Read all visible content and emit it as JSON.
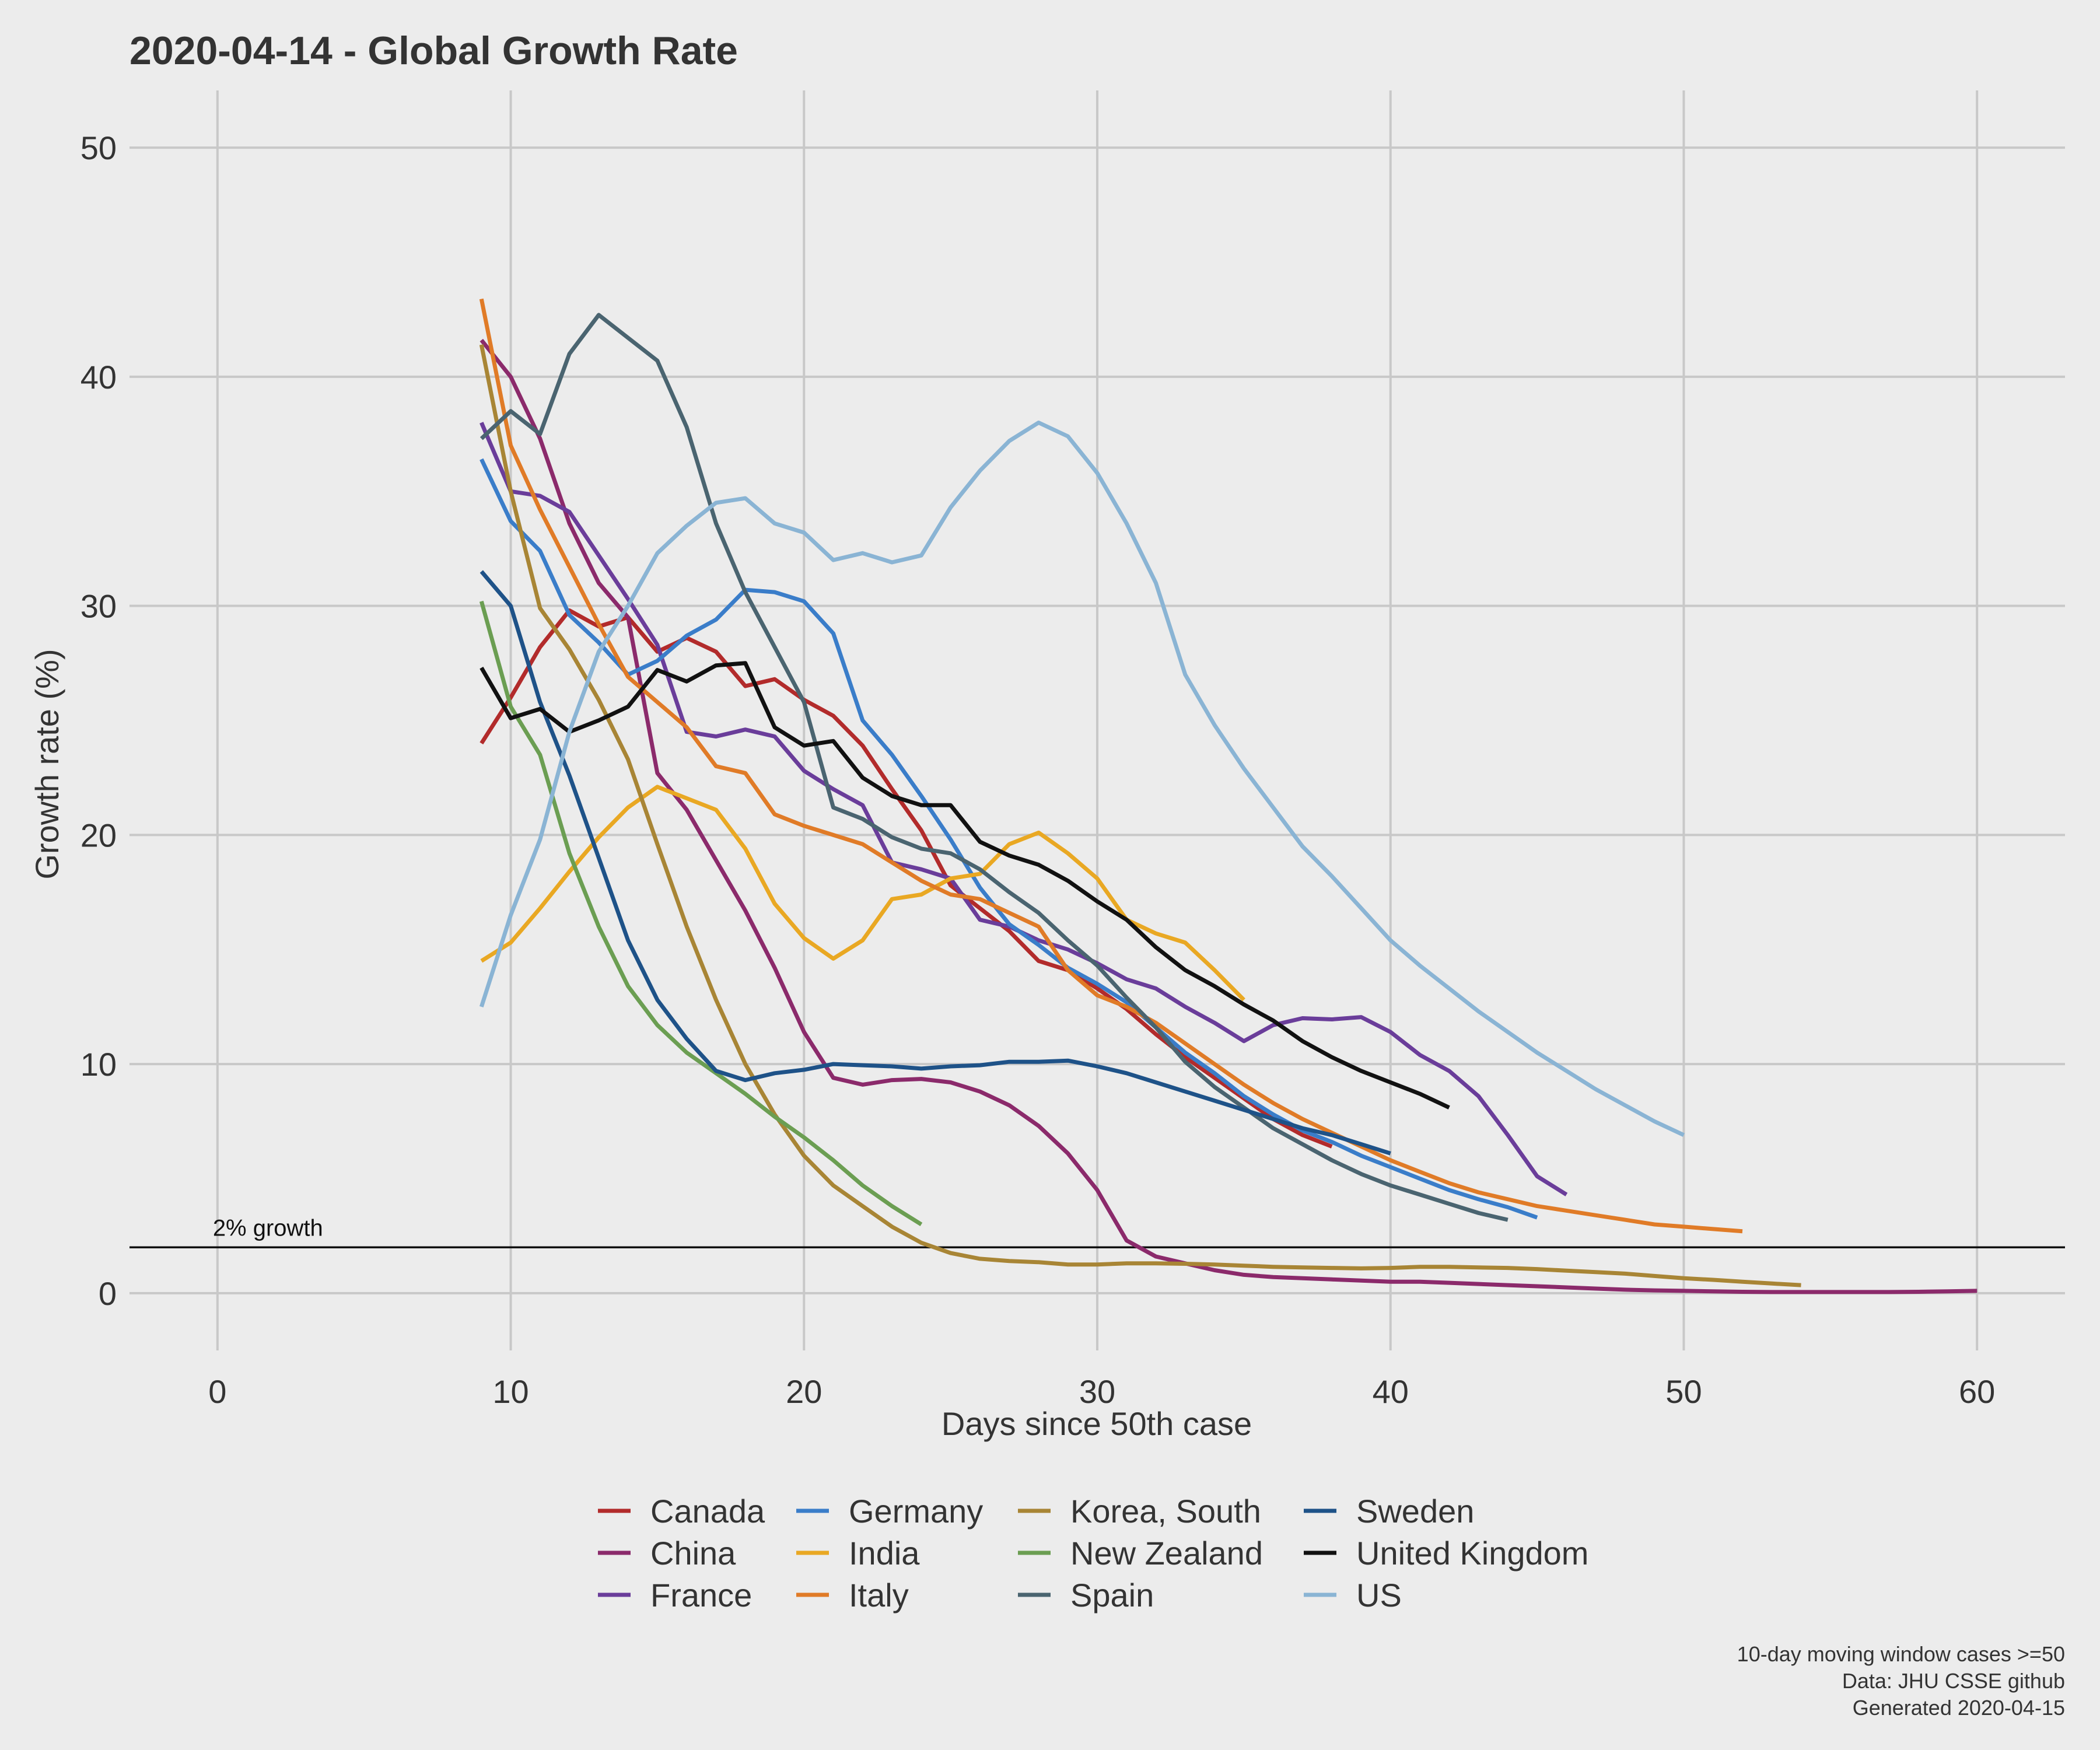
{
  "chart_data": {
    "type": "line",
    "title": "2020-04-14  - Global Growth Rate",
    "xlabel": "Days since 50th case",
    "ylabel": "Growth rate (%)",
    "xlim": [
      -3,
      63
    ],
    "ylim": [
      -2.5,
      52.5
    ],
    "x_ticks": [
      0,
      10,
      20,
      30,
      40,
      50,
      60
    ],
    "y_ticks": [
      0,
      10,
      20,
      30,
      40,
      50
    ],
    "grid": true,
    "legend_position": "bottom",
    "reference_line": {
      "y": 2,
      "label": "2% growth"
    },
    "caption": [
      "10-day moving window cases >=50",
      "Data: JHU CSSE github",
      "Generated 2020-04-15"
    ],
    "series": [
      {
        "name": "Canada",
        "color": "#b22b2b",
        "x": [
          9,
          10,
          11,
          12,
          13,
          14,
          15,
          16,
          17,
          18,
          19,
          20,
          21,
          22,
          23,
          24,
          25,
          26,
          27,
          28,
          29,
          30,
          31,
          32,
          33,
          34,
          35,
          36,
          37,
          38
        ],
        "y": [
          24.0,
          26.0,
          28.2,
          29.8,
          29.1,
          29.5,
          28.0,
          28.6,
          28.0,
          26.5,
          26.8,
          25.9,
          25.2,
          23.9,
          22.0,
          20.2,
          17.8,
          16.8,
          15.8,
          14.5,
          14.1,
          13.3,
          12.4,
          11.3,
          10.3,
          9.4,
          8.5,
          7.6,
          6.9,
          6.4
        ]
      },
      {
        "name": "China",
        "color": "#8b2a6b",
        "x": [
          9,
          10,
          11,
          12,
          13,
          14,
          15,
          16,
          17,
          18,
          19,
          20,
          21,
          22,
          23,
          24,
          25,
          26,
          27,
          28,
          29,
          30,
          31,
          32,
          33,
          34,
          35,
          36,
          37,
          38,
          39,
          40,
          41,
          42,
          43,
          44,
          45,
          46,
          47,
          48,
          49,
          50,
          51,
          52,
          53,
          54,
          55,
          56,
          57,
          58,
          59,
          60
        ],
        "y": [
          41.6,
          40.0,
          37.3,
          33.6,
          31.0,
          29.5,
          22.7,
          21.1,
          18.9,
          16.7,
          14.2,
          11.4,
          9.4,
          9.1,
          9.3,
          9.35,
          9.2,
          8.8,
          8.2,
          7.3,
          6.1,
          4.5,
          2.3,
          1.6,
          1.3,
          1.0,
          0.8,
          0.7,
          0.65,
          0.6,
          0.55,
          0.5,
          0.5,
          0.45,
          0.4,
          0.35,
          0.3,
          0.25,
          0.2,
          0.15,
          0.12,
          0.1,
          0.08,
          0.06,
          0.05,
          0.05,
          0.05,
          0.05,
          0.05,
          0.06,
          0.08,
          0.1
        ]
      },
      {
        "name": "France",
        "color": "#6a3d9a",
        "x": [
          9,
          10,
          11,
          12,
          13,
          14,
          15,
          16,
          17,
          18,
          19,
          20,
          21,
          22,
          23,
          24,
          25,
          26,
          27,
          28,
          29,
          30,
          31,
          32,
          33,
          34,
          35,
          36,
          37,
          38,
          39,
          40,
          41,
          42,
          43,
          44,
          45,
          46
        ],
        "y": [
          38.0,
          35.0,
          34.8,
          34.1,
          32.2,
          30.3,
          28.3,
          24.5,
          24.3,
          24.6,
          24.3,
          22.8,
          22.0,
          21.3,
          18.8,
          18.5,
          18.1,
          16.3,
          16.0,
          15.4,
          15.0,
          14.4,
          13.7,
          13.3,
          12.5,
          11.8,
          11.0,
          11.7,
          12.0,
          11.95,
          12.05,
          11.4,
          10.4,
          9.7,
          8.6,
          6.9,
          5.1,
          4.3
        ]
      },
      {
        "name": "Germany",
        "color": "#3a7dc9",
        "x": [
          9,
          10,
          11,
          12,
          13,
          14,
          15,
          16,
          17,
          18,
          19,
          20,
          21,
          22,
          23,
          24,
          25,
          26,
          27,
          28,
          29,
          30,
          31,
          32,
          33,
          34,
          35,
          36,
          37,
          38,
          39,
          40,
          41,
          42,
          43,
          44,
          45
        ],
        "y": [
          36.4,
          33.7,
          32.4,
          29.6,
          28.4,
          27.0,
          27.6,
          28.7,
          29.4,
          30.7,
          30.6,
          30.2,
          28.8,
          25.0,
          23.5,
          21.7,
          19.8,
          17.7,
          16.1,
          15.2,
          14.2,
          13.5,
          12.7,
          11.6,
          10.5,
          9.6,
          8.6,
          7.8,
          7.1,
          6.6,
          6.0,
          5.5,
          5.0,
          4.5,
          4.1,
          3.75,
          3.3
        ]
      },
      {
        "name": "India",
        "color": "#e9a823",
        "x": [
          9,
          10,
          11,
          12,
          13,
          14,
          15,
          16,
          17,
          18,
          19,
          20,
          21,
          22,
          23,
          24,
          25,
          26,
          27,
          28,
          29,
          30,
          31,
          32,
          33,
          34,
          35
        ],
        "y": [
          14.5,
          15.3,
          16.8,
          18.4,
          19.9,
          21.2,
          22.1,
          21.6,
          21.1,
          19.4,
          17.0,
          15.5,
          14.6,
          15.4,
          17.2,
          17.4,
          18.1,
          18.3,
          19.6,
          20.1,
          19.2,
          18.1,
          16.3,
          15.7,
          15.3,
          14.1,
          12.8
        ]
      },
      {
        "name": "Italy",
        "color": "#e07b27",
        "x": [
          9,
          10,
          11,
          12,
          13,
          14,
          15,
          16,
          17,
          18,
          19,
          20,
          21,
          22,
          23,
          24,
          25,
          26,
          27,
          28,
          29,
          30,
          31,
          32,
          33,
          34,
          35,
          36,
          37,
          38,
          39,
          40,
          41,
          42,
          43,
          44,
          45,
          46,
          47,
          48,
          49,
          50,
          51,
          52
        ],
        "y": [
          43.4,
          37.0,
          34.2,
          31.7,
          29.2,
          26.9,
          25.8,
          24.7,
          23.0,
          22.7,
          20.9,
          20.4,
          20.0,
          19.6,
          18.8,
          18.0,
          17.4,
          17.2,
          16.6,
          16.0,
          14.1,
          13.0,
          12.5,
          11.8,
          10.9,
          10.0,
          9.1,
          8.3,
          7.6,
          7.0,
          6.4,
          5.8,
          5.3,
          4.8,
          4.4,
          4.1,
          3.8,
          3.6,
          3.4,
          3.2,
          3.0,
          2.9,
          2.8,
          2.7
        ]
      },
      {
        "name": "Korea, South",
        "color": "#a88535",
        "x": [
          9,
          10,
          11,
          12,
          13,
          14,
          15,
          16,
          17,
          18,
          19,
          20,
          21,
          22,
          23,
          24,
          25,
          26,
          27,
          28,
          29,
          30,
          31,
          32,
          33,
          34,
          35,
          36,
          37,
          38,
          39,
          40,
          41,
          42,
          43,
          44,
          45,
          46,
          47,
          48,
          49,
          50,
          51,
          52,
          53,
          54
        ],
        "y": [
          41.4,
          35.0,
          29.9,
          28.1,
          25.9,
          23.3,
          19.6,
          16.0,
          12.8,
          10.0,
          7.8,
          6.0,
          4.7,
          3.8,
          2.9,
          2.2,
          1.75,
          1.5,
          1.4,
          1.35,
          1.25,
          1.25,
          1.3,
          1.3,
          1.28,
          1.25,
          1.2,
          1.15,
          1.12,
          1.1,
          1.08,
          1.1,
          1.15,
          1.15,
          1.12,
          1.1,
          1.05,
          0.98,
          0.92,
          0.85,
          0.75,
          0.65,
          0.58,
          0.5,
          0.42,
          0.35
        ]
      },
      {
        "name": "New Zealand",
        "color": "#6b9e52",
        "x": [
          9,
          10,
          11,
          12,
          13,
          14,
          15,
          16,
          17,
          18,
          19,
          20,
          21,
          22,
          23,
          24
        ],
        "y": [
          30.2,
          25.6,
          23.5,
          19.2,
          16.0,
          13.4,
          11.7,
          10.5,
          9.6,
          8.7,
          7.7,
          6.8,
          5.8,
          4.7,
          3.8,
          3.0
        ]
      },
      {
        "name": "Spain",
        "color": "#4a6470",
        "x": [
          9,
          10,
          11,
          12,
          13,
          14,
          15,
          16,
          17,
          18,
          19,
          20,
          21,
          22,
          23,
          24,
          25,
          26,
          27,
          28,
          29,
          30,
          31,
          32,
          33,
          34,
          35,
          36,
          37,
          38,
          39,
          40,
          41,
          42,
          43,
          44
        ],
        "y": [
          37.3,
          38.5,
          37.5,
          41.0,
          42.7,
          41.7,
          40.7,
          37.8,
          33.6,
          30.6,
          28.2,
          25.8,
          21.2,
          20.7,
          19.9,
          19.4,
          19.2,
          18.5,
          17.5,
          16.6,
          15.4,
          14.3,
          12.9,
          11.6,
          10.1,
          9.0,
          8.1,
          7.2,
          6.5,
          5.8,
          5.2,
          4.7,
          4.3,
          3.9,
          3.5,
          3.2
        ]
      },
      {
        "name": "Sweden",
        "color": "#1e5288",
        "x": [
          9,
          10,
          11,
          12,
          13,
          14,
          15,
          16,
          17,
          18,
          19,
          20,
          21,
          22,
          23,
          24,
          25,
          26,
          27,
          28,
          29,
          30,
          31,
          32,
          33,
          34,
          35,
          36,
          37,
          38,
          39,
          40
        ],
        "y": [
          31.5,
          30.0,
          25.8,
          22.6,
          19.0,
          15.4,
          12.8,
          11.1,
          9.7,
          9.3,
          9.6,
          9.75,
          10.0,
          9.95,
          9.9,
          9.8,
          9.9,
          9.95,
          10.1,
          10.1,
          10.15,
          9.9,
          9.6,
          9.2,
          8.8,
          8.4,
          8.0,
          7.6,
          7.2,
          6.9,
          6.5,
          6.1
        ]
      },
      {
        "name": "United Kingdom",
        "color": "#111111",
        "x": [
          9,
          10,
          11,
          12,
          13,
          14,
          15,
          16,
          17,
          18,
          19,
          20,
          21,
          22,
          23,
          24,
          25,
          26,
          27,
          28,
          29,
          30,
          31,
          32,
          33,
          34,
          35,
          36,
          37,
          38,
          39,
          40,
          41,
          42
        ],
        "y": [
          27.3,
          25.1,
          25.5,
          24.5,
          25.0,
          25.6,
          27.2,
          26.7,
          27.4,
          27.5,
          24.7,
          23.9,
          24.1,
          22.5,
          21.7,
          21.3,
          21.3,
          19.7,
          19.1,
          18.7,
          18.0,
          17.1,
          16.3,
          15.1,
          14.1,
          13.4,
          12.6,
          11.9,
          11.0,
          10.3,
          9.7,
          9.2,
          8.7,
          8.1
        ]
      },
      {
        "name": "US",
        "color": "#8ab4d4",
        "x": [
          9,
          10,
          11,
          12,
          13,
          14,
          15,
          16,
          17,
          18,
          19,
          20,
          21,
          22,
          23,
          24,
          25,
          26,
          27,
          28,
          29,
          30,
          31,
          32,
          33,
          34,
          35,
          36,
          37,
          38,
          39,
          40,
          41,
          42,
          43,
          44,
          45,
          46,
          47,
          48,
          49,
          50
        ],
        "y": [
          12.5,
          16.5,
          19.8,
          24.5,
          28.0,
          30.0,
          32.3,
          33.5,
          34.5,
          34.7,
          33.6,
          33.2,
          32.0,
          32.3,
          31.9,
          32.2,
          34.3,
          35.9,
          37.2,
          38.0,
          37.4,
          35.8,
          33.6,
          31.0,
          27.0,
          24.8,
          22.9,
          21.2,
          19.5,
          18.2,
          16.8,
          15.4,
          14.3,
          13.3,
          12.3,
          11.4,
          10.5,
          9.7,
          8.9,
          8.2,
          7.5,
          6.9
        ]
      }
    ]
  }
}
